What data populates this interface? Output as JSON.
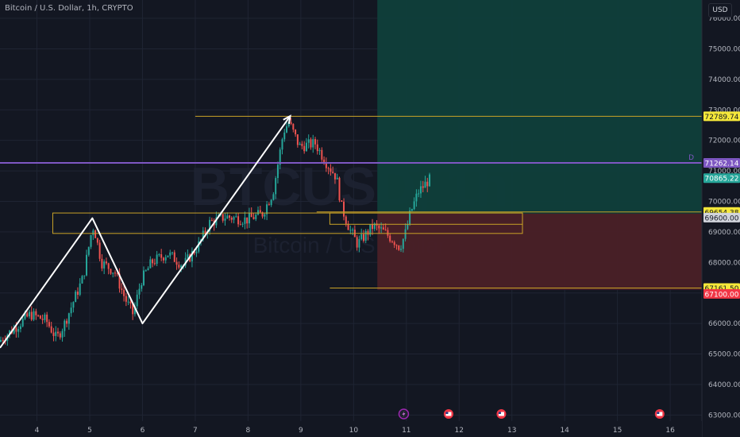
{
  "header": {
    "title": "Bitcoin / U.S. Dollar, 1h, CRYPTO",
    "currency": "USD"
  },
  "watermark": {
    "symbol": "BTCUSD, 1h",
    "name": "Bitcoin / U.S. Dollar"
  },
  "colors": {
    "bg": "#131722",
    "up": "#26a69a",
    "down": "#ef5350",
    "grid": "#1f2433",
    "axis_text": "#b2b5be",
    "white_line": "#ffffff",
    "box_line": "#c9a227",
    "purple": "#7e57c2",
    "profit_zone": "#0f3f3b",
    "loss_zone": "#4a2027",
    "yellow_label": "#f5e83a",
    "green_label": "#26a69a",
    "red_label": "#f23645"
  },
  "chart_data": {
    "type": "candlestick",
    "x_ticks": [
      "4",
      "5",
      "6",
      "7",
      "8",
      "9",
      "10",
      "11",
      "12",
      "13",
      "14",
      "15",
      "16"
    ],
    "y_ticks": [
      "63000.00",
      "64000.00",
      "65000.00",
      "66000.00",
      "67000.00",
      "68000.00",
      "69000.00",
      "70000.00",
      "71000.00",
      "72000.00",
      "73000.00",
      "74000.00",
      "75000.00",
      "76000.00"
    ],
    "ylim": [
      62800,
      76600
    ],
    "x_range_days": [
      3.3,
      16.6
    ],
    "last_candle_day": 11.45,
    "price_path": [
      [
        3.3,
        65400
      ],
      [
        3.9,
        66300
      ],
      [
        4.2,
        66100
      ],
      [
        4.4,
        65500
      ],
      [
        4.55,
        66000
      ],
      [
        4.9,
        67500
      ],
      [
        5.05,
        68900
      ],
      [
        5.1,
        69200
      ],
      [
        5.25,
        68000
      ],
      [
        5.5,
        67700
      ],
      [
        5.7,
        66800
      ],
      [
        5.85,
        66300
      ],
      [
        6.0,
        67400
      ],
      [
        6.2,
        68000
      ],
      [
        6.5,
        68300
      ],
      [
        6.8,
        67900
      ],
      [
        7.1,
        68600
      ],
      [
        7.3,
        69300
      ],
      [
        7.6,
        69500
      ],
      [
        8.0,
        69400
      ],
      [
        8.3,
        69600
      ],
      [
        8.5,
        70300
      ],
      [
        8.7,
        72300
      ],
      [
        8.8,
        72600
      ],
      [
        9.0,
        71800
      ],
      [
        9.3,
        71900
      ],
      [
        9.5,
        71300
      ],
      [
        9.7,
        70800
      ],
      [
        9.8,
        69800
      ],
      [
        9.95,
        69100
      ],
      [
        10.1,
        68600
      ],
      [
        10.4,
        69200
      ],
      [
        10.6,
        69000
      ],
      [
        10.8,
        68700
      ],
      [
        10.9,
        68500
      ],
      [
        11.0,
        68900
      ],
      [
        11.1,
        69600
      ],
      [
        11.25,
        70300
      ],
      [
        11.45,
        70700
      ]
    ],
    "price_labels": [
      {
        "label": "72789.74",
        "value": 72789.74,
        "style": "yellow"
      },
      {
        "label": "71262.14",
        "value": 71262.14,
        "style": "purple"
      },
      {
        "label": "70865.22",
        "value": 70865.22,
        "style": "green"
      },
      {
        "label": "69654.38",
        "value": 69654.38,
        "style": "yellow"
      },
      {
        "label": "69600.00",
        "value": 69600.0,
        "style": "gray"
      },
      {
        "label": "67161.50",
        "value": 67161.5,
        "style": "yellow"
      },
      {
        "label": "67100.00",
        "value": 67100.0,
        "style": "red"
      }
    ],
    "purple_line_marker": "D",
    "zigzag": [
      [
        3.3,
        65200
      ],
      [
        5.05,
        69450
      ],
      [
        6.0,
        66000
      ],
      [
        8.8,
        72800
      ]
    ],
    "range_box": {
      "day_start": 4.3,
      "day_end": 13.2,
      "price_top": 69620,
      "price_bottom": 68950
    },
    "inner_box": {
      "day_start": 9.55,
      "day_end": 13.2,
      "price_top": 69620,
      "price_bottom": 69250
    },
    "lines": [
      {
        "day_start": 7.0,
        "day_end": 16.6,
        "value": 72789.74
      },
      {
        "day_start": 9.3,
        "day_end": 16.6,
        "value": 69654.38
      },
      {
        "day_start": 9.55,
        "day_end": 16.6,
        "value": 67161.5
      }
    ],
    "position": {
      "day_start": 10.45,
      "day_end": 16.6,
      "target_top": 76600,
      "entry": 69600,
      "stop": 67100
    },
    "events": [
      {
        "type": "lightning",
        "day": 10.95
      },
      {
        "type": "flag",
        "day": 11.8
      },
      {
        "type": "flag",
        "day": 12.8
      },
      {
        "type": "flag",
        "day": 15.8
      }
    ]
  }
}
